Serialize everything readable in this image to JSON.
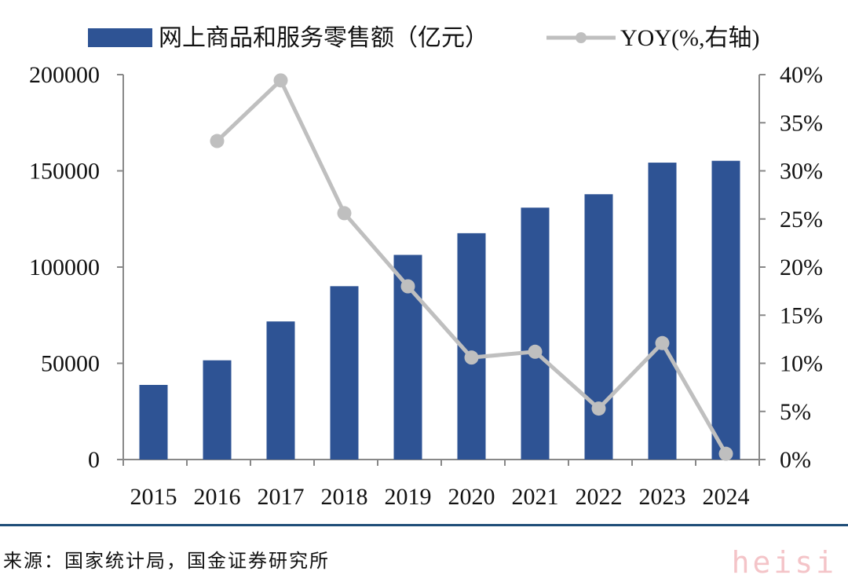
{
  "chart_data": {
    "type": "bar+line",
    "categories": [
      "2015",
      "2016",
      "2017",
      "2018",
      "2019",
      "2020",
      "2021",
      "2022",
      "2023",
      "2024"
    ],
    "series": [
      {
        "name": "网上商品和服务零售额（亿元）",
        "type": "bar",
        "axis": "left",
        "color": "#2e5394",
        "values": [
          38773,
          51556,
          71751,
          90065,
          106324,
          117601,
          130884,
          137853,
          154264,
          155225
        ]
      },
      {
        "name": "YOY(%,右轴)",
        "type": "line",
        "axis": "right",
        "color": "#bfbfbf",
        "values": [
          null,
          33.1,
          39.4,
          25.6,
          18.0,
          10.6,
          11.2,
          5.3,
          12.1,
          0.6
        ]
      }
    ],
    "left_axis": {
      "ylim": [
        0,
        200000
      ],
      "ticks": [
        "0",
        "50000",
        "100000",
        "150000",
        "200000"
      ]
    },
    "right_axis": {
      "ylim": [
        0,
        40
      ],
      "ticks": [
        "0%",
        "5%",
        "10%",
        "15%",
        "20%",
        "25%",
        "30%",
        "35%",
        "40%"
      ]
    },
    "legend_position": "top",
    "grid": false
  },
  "footer": {
    "source": "来源：国家统计局，国金证券研究所",
    "watermark": "heisi"
  }
}
